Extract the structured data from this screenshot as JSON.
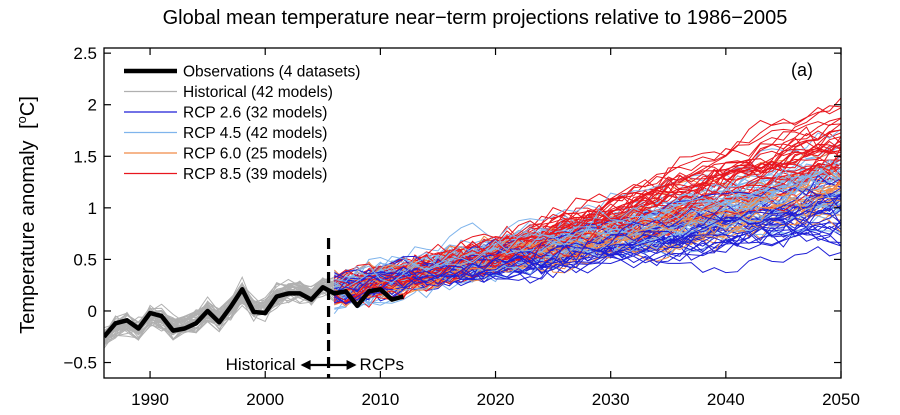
{
  "chart_data": {
    "type": "line",
    "title": "Global mean temperature near−term projections relative to 1986−2005",
    "panel_label": "(a)",
    "ylabel_main": "Temperature anomaly",
    "ylabel_unit_open": "[",
    "ylabel_unit_deg": "o",
    "ylabel_unit_rest": "C]",
    "xlim": [
      1986,
      2050
    ],
    "ylim": [
      -0.65,
      2.55
    ],
    "x_ticks": [
      1990,
      2000,
      2010,
      2020,
      2030,
      2040,
      2050
    ],
    "y_ticks": [
      -0.5,
      0,
      0.5,
      1,
      1.5,
      2,
      2.5
    ],
    "y_tick_labels": [
      "−0.5",
      "0",
      "0.5",
      "1",
      "1.5",
      "2",
      "2.5"
    ],
    "legend_position": "top-left",
    "annotations": {
      "divider_year": 2005.5,
      "historical_label": "Historical",
      "rcps_label": "RCPs"
    },
    "series": [
      {
        "name": "Observations (4 datasets)",
        "color": "#000000",
        "style": "observed",
        "x": [
          1986,
          1987,
          1988,
          1989,
          1990,
          1991,
          1992,
          1993,
          1994,
          1995,
          1996,
          1997,
          1998,
          1999,
          2000,
          2001,
          2002,
          2003,
          2004,
          2005,
          2006,
          2007,
          2008,
          2009,
          2010,
          2011,
          2012
        ],
        "values": [
          -0.25,
          -0.12,
          -0.09,
          -0.17,
          -0.02,
          -0.05,
          -0.19,
          -0.17,
          -0.12,
          0.0,
          -0.11,
          0.04,
          0.21,
          -0.01,
          -0.02,
          0.14,
          0.17,
          0.17,
          0.11,
          0.23,
          0.17,
          0.19,
          0.05,
          0.19,
          0.21,
          0.11,
          0.14
        ]
      },
      {
        "name": "Historical (42 models)",
        "color": "#b0b0b0",
        "count": 42,
        "x_range": [
          1986,
          2005
        ]
      },
      {
        "name": "RCP 2.6 (32 models)",
        "color": "#1f1fd6",
        "count": 32,
        "x_range": [
          2006,
          2050
        ],
        "value_2050": 0.95
      },
      {
        "name": "RCP 4.5 (42 models)",
        "color": "#7fb4ec",
        "count": 42,
        "x_range": [
          2006,
          2050
        ],
        "value_2050": 1.25
      },
      {
        "name": "RCP 6.0 (25 models)",
        "color": "#f08a48",
        "count": 25,
        "x_range": [
          2006,
          2050
        ],
        "value_2050": 1.1
      },
      {
        "name": "RCP 8.5 (39 models)",
        "color": "#e8161e",
        "count": 39,
        "x_range": [
          2006,
          2050
        ],
        "value_2050": 1.7
      }
    ]
  }
}
